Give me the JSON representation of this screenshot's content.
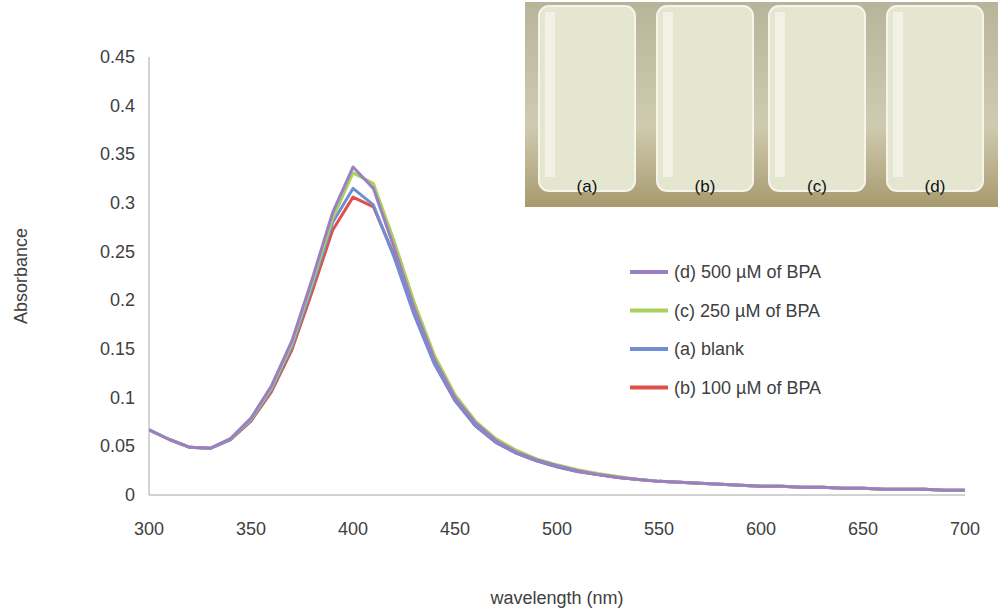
{
  "chart_data": {
    "type": "line",
    "x_label": "wavelength (nm)",
    "y_label": "Absorbance",
    "annotations": [
      "(a)",
      "(b)",
      "(c)",
      "(d)"
    ],
    "x": [
      300,
      310,
      320,
      330,
      340,
      350,
      360,
      370,
      380,
      390,
      400,
      410,
      420,
      430,
      440,
      450,
      460,
      470,
      480,
      490,
      500,
      510,
      520,
      530,
      540,
      550,
      560,
      570,
      580,
      590,
      600,
      610,
      620,
      630,
      640,
      650,
      660,
      670,
      680,
      690,
      700
    ],
    "series": [
      {
        "name": "(d) 500 µM of BPA",
        "color": "#9b7fc4",
        "values": [
          0.067,
          0.057,
          0.049,
          0.048,
          0.058,
          0.079,
          0.112,
          0.158,
          0.222,
          0.29,
          0.337,
          0.315,
          0.255,
          0.192,
          0.139,
          0.1,
          0.074,
          0.056,
          0.044,
          0.036,
          0.03,
          0.025,
          0.021,
          0.018,
          0.016,
          0.014,
          0.013,
          0.012,
          0.011,
          0.01,
          0.009,
          0.009,
          0.008,
          0.008,
          0.007,
          0.007,
          0.006,
          0.006,
          0.006,
          0.005,
          0.005
        ]
      },
      {
        "name": "(c) 250 µM of BPA",
        "color": "#a9d15c",
        "values": [
          0.067,
          0.057,
          0.049,
          0.048,
          0.058,
          0.078,
          0.11,
          0.155,
          0.218,
          0.284,
          0.331,
          0.32,
          0.262,
          0.198,
          0.143,
          0.103,
          0.076,
          0.058,
          0.046,
          0.037,
          0.031,
          0.026,
          0.022,
          0.019,
          0.016,
          0.014,
          0.013,
          0.012,
          0.011,
          0.01,
          0.009,
          0.009,
          0.008,
          0.008,
          0.007,
          0.007,
          0.006,
          0.006,
          0.006,
          0.005,
          0.005
        ]
      },
      {
        "name": "(a) blank",
        "color": "#6f8fd2",
        "values": [
          0.067,
          0.057,
          0.049,
          0.048,
          0.057,
          0.077,
          0.108,
          0.152,
          0.214,
          0.28,
          0.315,
          0.298,
          0.245,
          0.185,
          0.134,
          0.097,
          0.071,
          0.054,
          0.043,
          0.035,
          0.029,
          0.024,
          0.021,
          0.018,
          0.016,
          0.014,
          0.013,
          0.012,
          0.011,
          0.01,
          0.009,
          0.009,
          0.008,
          0.008,
          0.007,
          0.007,
          0.006,
          0.006,
          0.006,
          0.005,
          0.005
        ]
      },
      {
        "name": "(b) 100 µM of BPA",
        "color": "#e0504a",
        "values": [
          0.067,
          0.057,
          0.049,
          0.048,
          0.057,
          0.076,
          0.106,
          0.149,
          0.209,
          0.272,
          0.306,
          0.296,
          0.247,
          0.187,
          0.135,
          0.097,
          0.071,
          0.054,
          0.043,
          0.035,
          0.029,
          0.024,
          0.021,
          0.018,
          0.016,
          0.014,
          0.013,
          0.012,
          0.011,
          0.01,
          0.009,
          0.009,
          0.008,
          0.008,
          0.007,
          0.007,
          0.006,
          0.006,
          0.006,
          0.005,
          0.005
        ]
      }
    ],
    "xlim": [
      300,
      700
    ],
    "xticks": [
      300,
      350,
      400,
      450,
      500,
      550,
      600,
      650,
      700
    ],
    "ylim": [
      0,
      0.45
    ],
    "yticks": [
      0,
      0.05,
      0.1,
      0.15,
      0.2,
      0.25,
      0.3,
      0.35,
      0.4,
      0.45
    ],
    "grid": false,
    "legend": "right"
  }
}
